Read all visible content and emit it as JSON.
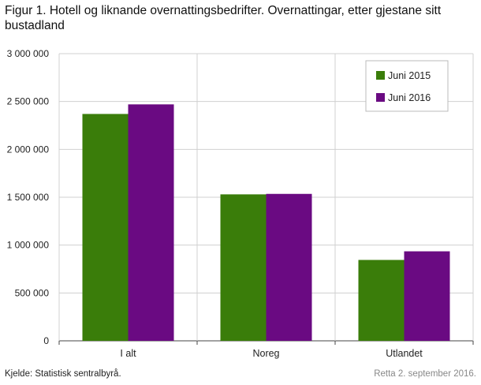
{
  "title": "Figur 1. Hotell og liknande overnattingsbedrifter. Overnattingar, etter gjestane sitt bustadland",
  "source": "Kjelde: Statistisk sentralbyrå.",
  "updated": "Retta 2. september 2016.",
  "colors": {
    "series_2015": "#3a7d0a",
    "series_2016": "#6a0a82",
    "grid": "#d0d0d0"
  },
  "chart_data": {
    "type": "bar",
    "title": "Figur 1. Hotell og liknande overnattingsbedrifter. Overnattingar, etter gjestane sitt bustadland",
    "xlabel": "",
    "ylabel": "",
    "categories": [
      "I alt",
      "Noreg",
      "Utlandet"
    ],
    "series": [
      {
        "name": "Juni  2015",
        "values": [
          2370000,
          1530000,
          845000
        ]
      },
      {
        "name": "Juni  2016",
        "values": [
          2470000,
          1535000,
          935000
        ]
      }
    ],
    "ylim": [
      0,
      3000000
    ],
    "yticks": [
      0,
      500000,
      1000000,
      1500000,
      2000000,
      2500000,
      3000000
    ],
    "ytick_labels": [
      "0",
      "500 000",
      "1 000 000",
      "1 500 000",
      "2 000 000",
      "2 500 000",
      "3 000 000"
    ],
    "grid": true,
    "legend_position": "top-right"
  }
}
